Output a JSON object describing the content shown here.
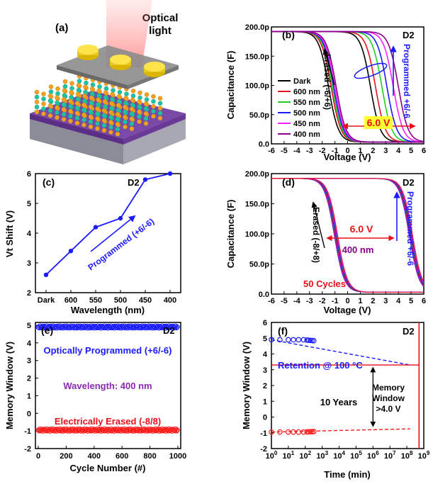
{
  "panels": {
    "a": {
      "label": "(a)",
      "light_label_1": "Optical",
      "light_label_2": "light"
    },
    "b": {
      "label": "(b)",
      "device": "D2",
      "annotation_erased": "Erased (-6/+6)",
      "annotation_programmed": "Programmed +6/-6",
      "window_label": "6.0 V"
    },
    "c": {
      "label": "(c)",
      "device": "D2",
      "annotation": "Programmed (+6/-6)"
    },
    "d": {
      "label": "(d)",
      "device": "D2",
      "annotation_erased": "Erased (-8/+8)",
      "annotation_programmed": "Programmed +6/-6",
      "window_label": "6.0 V",
      "wavelength_label": "400 nm",
      "cycles_label": "50 Cycles"
    },
    "e": {
      "label": "(e)",
      "device": "D2",
      "text_programmed": "Optically Programmed (+6/-6)",
      "text_wavelength": "Wavelength: 400 nm",
      "text_erased": "Electrically Erased (-8/8)"
    },
    "f": {
      "label": "(f)",
      "device": "D2",
      "retention_label": "Retention @ 100 °C",
      "years_label": "10 Years",
      "window_label_1": "Memory",
      "window_label_2": "Window",
      "window_label_3": ">4.0 V"
    }
  },
  "chart_data": [
    {
      "panel": "b",
      "type": "line",
      "xlabel": "Voltage (V)",
      "ylabel": "Capacitance (F)",
      "xlim": [
        -6,
        6
      ],
      "ylim": [
        0,
        200
      ],
      "xticks": [
        "-6",
        "-5",
        "-4",
        "-3",
        "-2",
        "-1",
        "0",
        "1",
        "2",
        "3",
        "4",
        "5",
        "6"
      ],
      "yticks": [
        "0.0",
        "50.0p",
        "100.0p",
        "150.0p",
        "200.0p"
      ],
      "legend_position": "left",
      "series": [
        {
          "name": "Dark",
          "color": "#000000",
          "erase_vmid": -1.5,
          "program_vmid": 1.8
        },
        {
          "name": "600 nm",
          "color": "#e8101a",
          "erase_vmid": -1.3,
          "program_vmid": 2.2
        },
        {
          "name": "550 nm",
          "color": "#22cc22",
          "erase_vmid": -1.2,
          "program_vmid": 2.7
        },
        {
          "name": "500 nm",
          "color": "#1a1aff",
          "erase_vmid": -1.1,
          "program_vmid": 3.1
        },
        {
          "name": "450 nm",
          "color": "#ff20ff",
          "erase_vmid": -1.0,
          "program_vmid": 3.6
        },
        {
          "name": "400 nm",
          "color": "#8a008a",
          "erase_vmid": -0.9,
          "program_vmid": 4.0
        }
      ]
    },
    {
      "panel": "c",
      "type": "line",
      "xlabel": "Wavelength (nm)",
      "ylabel": "Vt Shift (V)",
      "ylim": [
        2,
        6
      ],
      "categories": [
        "Dark",
        "600",
        "550",
        "500",
        "450",
        "400"
      ],
      "yticks": [
        "2",
        "3",
        "4",
        "5",
        "6"
      ],
      "values": [
        2.6,
        3.4,
        4.2,
        4.5,
        5.8,
        6.0
      ],
      "color": "#1a1aff"
    },
    {
      "panel": "d",
      "type": "line",
      "xlabel": "Voltage (V)",
      "ylabel": "Capacitance (F)",
      "xlim": [
        -6,
        6
      ],
      "ylim": [
        0,
        200
      ],
      "xticks": [
        "-6",
        "-5",
        "-4",
        "-3",
        "-2",
        "-1",
        "0",
        "1",
        "2",
        "3",
        "4",
        "5",
        "6"
      ],
      "yticks": [
        "0.0",
        "50.0p",
        "100.0p",
        "150.0p",
        "200.0p"
      ],
      "erase_vmid": -0.9,
      "program_vmid": 5.0,
      "cycles": 50
    },
    {
      "panel": "e",
      "type": "scatter",
      "xlabel": "Cycle Number (#)",
      "ylabel": "Memory Window (V)",
      "xlim": [
        0,
        1000
      ],
      "ylim": [
        -2,
        5
      ],
      "xticks": [
        "0",
        "200",
        "400",
        "600",
        "800",
        "1000"
      ],
      "yticks": [
        "-2",
        "-1",
        "0",
        "1",
        "2",
        "3",
        "4",
        "5"
      ],
      "series": [
        {
          "name": "Optically Programmed (+6/-6)",
          "color": "#1a1aff",
          "value": 4.9
        },
        {
          "name": "Electrically Erased (-8/8)",
          "color": "#ff1a1a",
          "value": -0.95
        }
      ]
    },
    {
      "panel": "f",
      "type": "scatter",
      "xlabel": "Time (min)",
      "ylabel": "Memory Window (V)",
      "xscale": "log",
      "xlim": [
        0,
        9
      ],
      "ylim": [
        -2,
        6
      ],
      "xticks": [
        "10^0",
        "10^1",
        "10^2",
        "10^3",
        "10^4",
        "10^5",
        "10^6",
        "10^7",
        "10^8",
        "10^9"
      ],
      "yticks": [
        "-2",
        "-1",
        "0",
        "1",
        "2",
        "3",
        "4",
        "5",
        "6"
      ],
      "programmed_points_logt": [
        0,
        0.5,
        1,
        1.3,
        1.6,
        1.9,
        2.1,
        2.2,
        2.3,
        2.4,
        2.5
      ],
      "programmed_values": [
        4.9,
        4.9,
        4.9,
        4.9,
        4.9,
        4.9,
        4.88,
        4.87,
        4.86,
        4.85,
        4.84
      ],
      "erased_values": [
        -0.95,
        -0.95,
        -0.95,
        -0.95,
        -0.95,
        -0.95,
        -0.94,
        -0.94,
        -0.93,
        -0.93,
        -0.92
      ],
      "extrap_end_logt": 8.2,
      "programmed_extrap_end": 3.3,
      "erased_extrap_end": -0.75,
      "programmed_color": "#1a1aff",
      "erased_color": "#ff1a1a",
      "ten_year_logt": 8.72
    }
  ]
}
